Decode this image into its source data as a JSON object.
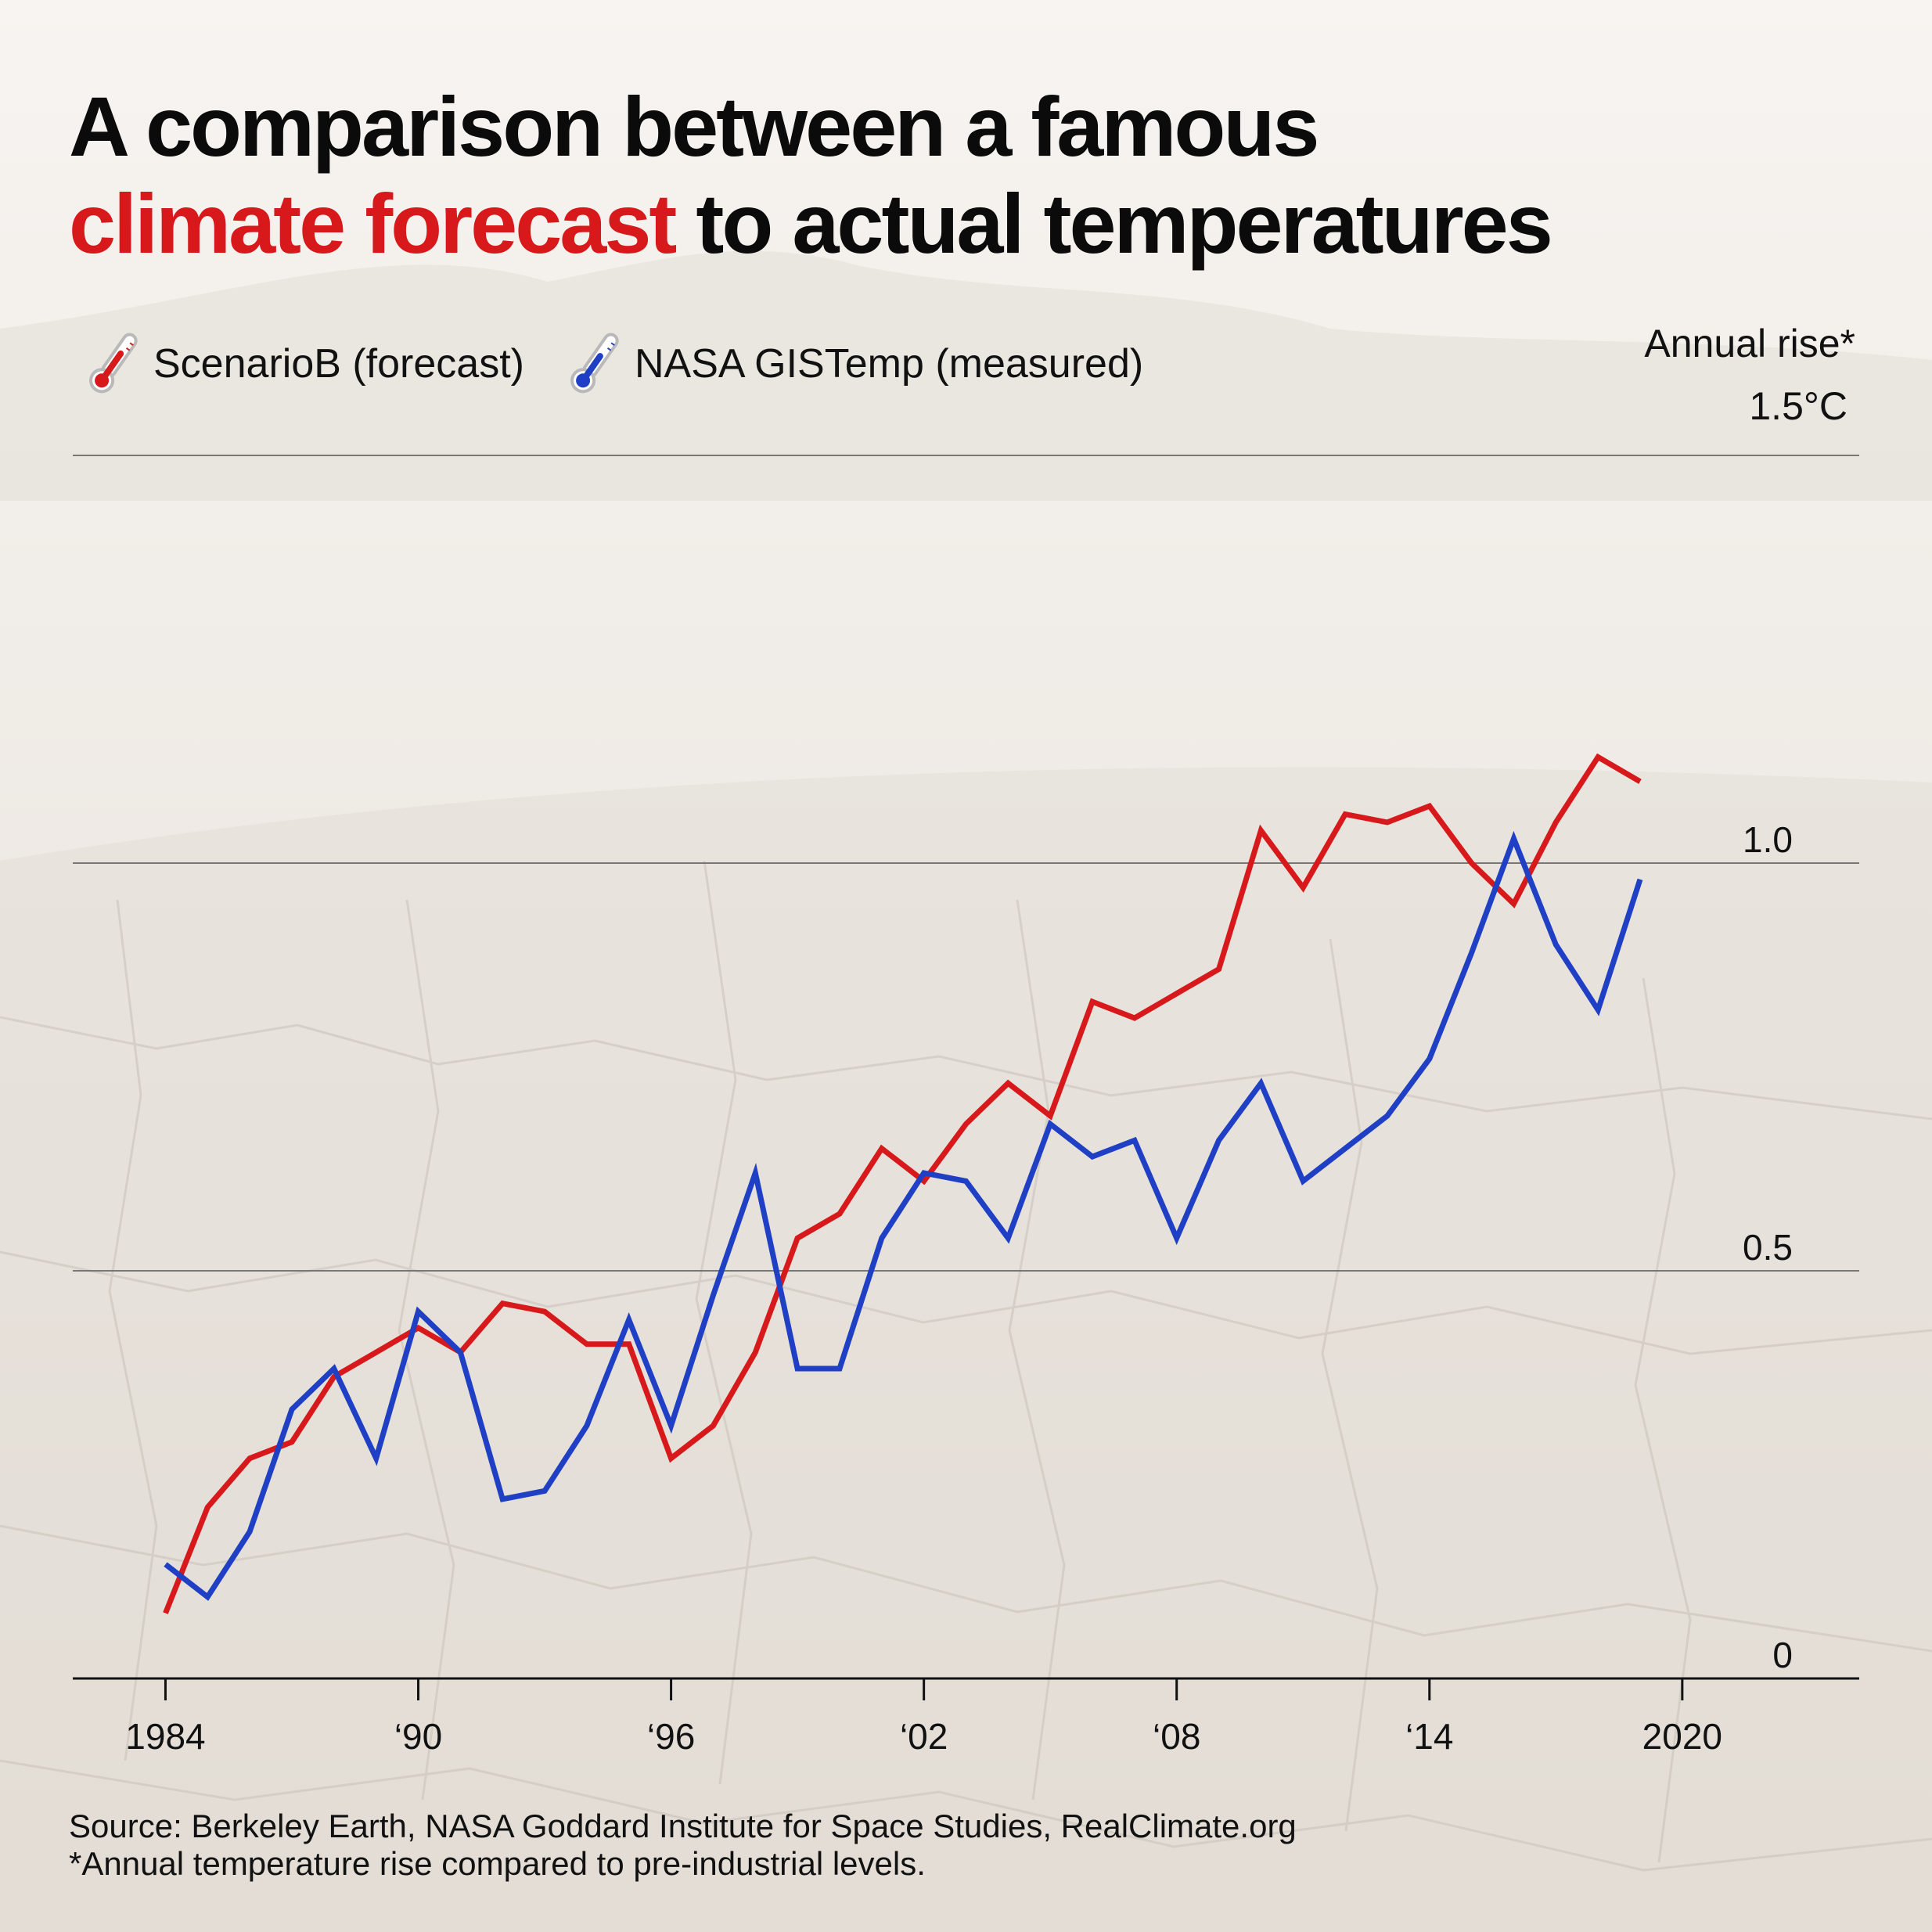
{
  "title": {
    "line1": "A comparison between a famous",
    "highlight": "climate forecast",
    "line2_rest": " to actual temperatures"
  },
  "legend": [
    {
      "label": "ScenarioB (forecast)",
      "icon": "thermometer-red-icon",
      "color": "#d7191c"
    },
    {
      "label": "NASA GISTemp (measured)",
      "icon": "thermometer-blue-icon",
      "color": "#1f3fc4"
    }
  ],
  "unit": {
    "label": "Annual rise*",
    "max": "1.5°C"
  },
  "footer": {
    "source": "Source: Berkeley Earth, NASA Goddard Institute for Space Studies, RealClimate.org",
    "note": "*Annual temperature rise compared to pre-industrial levels."
  },
  "colors": {
    "forecast": "#d7191c",
    "measured": "#1f3fc4",
    "title_highlight": "#d7191c"
  },
  "chart_data": {
    "type": "line",
    "title": "A comparison between a famous climate forecast to actual temperatures",
    "xlabel": "",
    "ylabel": "Annual rise*",
    "xlim": [
      1981.8,
      2024.2
    ],
    "ylim": [
      0,
      1.5
    ],
    "grid": true,
    "x_ticks": [
      {
        "value": 1984,
        "label": "1984"
      },
      {
        "value": 1990,
        "label": "‘90"
      },
      {
        "value": 1996,
        "label": "‘96"
      },
      {
        "value": 2002,
        "label": "‘02"
      },
      {
        "value": 2008,
        "label": "‘08"
      },
      {
        "value": 2014,
        "label": "‘14"
      },
      {
        "value": 2020,
        "label": "2020"
      }
    ],
    "y_ticks": [
      {
        "value": 0,
        "label": "0"
      },
      {
        "value": 0.5,
        "label": "0.5"
      },
      {
        "value": 1.0,
        "label": "1.0"
      }
    ],
    "x": [
      1984,
      1985,
      1986,
      1987,
      1988,
      1989,
      1990,
      1991,
      1992,
      1993,
      1994,
      1995,
      1996,
      1997,
      1998,
      1999,
      2000,
      2001,
      2002,
      2003,
      2004,
      2005,
      2006,
      2007,
      2008,
      2009,
      2010,
      2011,
      2012,
      2013,
      2014,
      2015,
      2016,
      2017,
      2018,
      2019,
      2020
    ],
    "series": [
      {
        "name": "ScenarioB (forecast)",
        "color": "#d7191c",
        "values": [
          0.08,
          0.21,
          0.27,
          0.29,
          0.37,
          0.4,
          0.43,
          0.4,
          0.46,
          0.45,
          0.41,
          0.41,
          0.27,
          0.31,
          0.4,
          0.54,
          0.57,
          0.65,
          0.61,
          0.68,
          0.73,
          0.69,
          0.83,
          0.81,
          0.84,
          0.87,
          1.04,
          0.97,
          1.06,
          1.05,
          1.07,
          1.0,
          0.95,
          1.05,
          1.13,
          1.1,
          null
        ]
      },
      {
        "name": "NASA GISTemp (measured)",
        "color": "#1f3fc4",
        "values": [
          0.14,
          0.1,
          0.18,
          0.33,
          0.38,
          0.27,
          0.45,
          0.4,
          0.22,
          0.23,
          0.31,
          0.44,
          0.31,
          0.47,
          0.62,
          0.38,
          0.38,
          0.54,
          0.62,
          0.61,
          0.54,
          0.68,
          0.64,
          0.66,
          0.54,
          0.66,
          0.73,
          0.61,
          0.65,
          0.69,
          0.76,
          0.89,
          1.03,
          0.9,
          0.82,
          0.98,
          null
        ]
      }
    ]
  }
}
